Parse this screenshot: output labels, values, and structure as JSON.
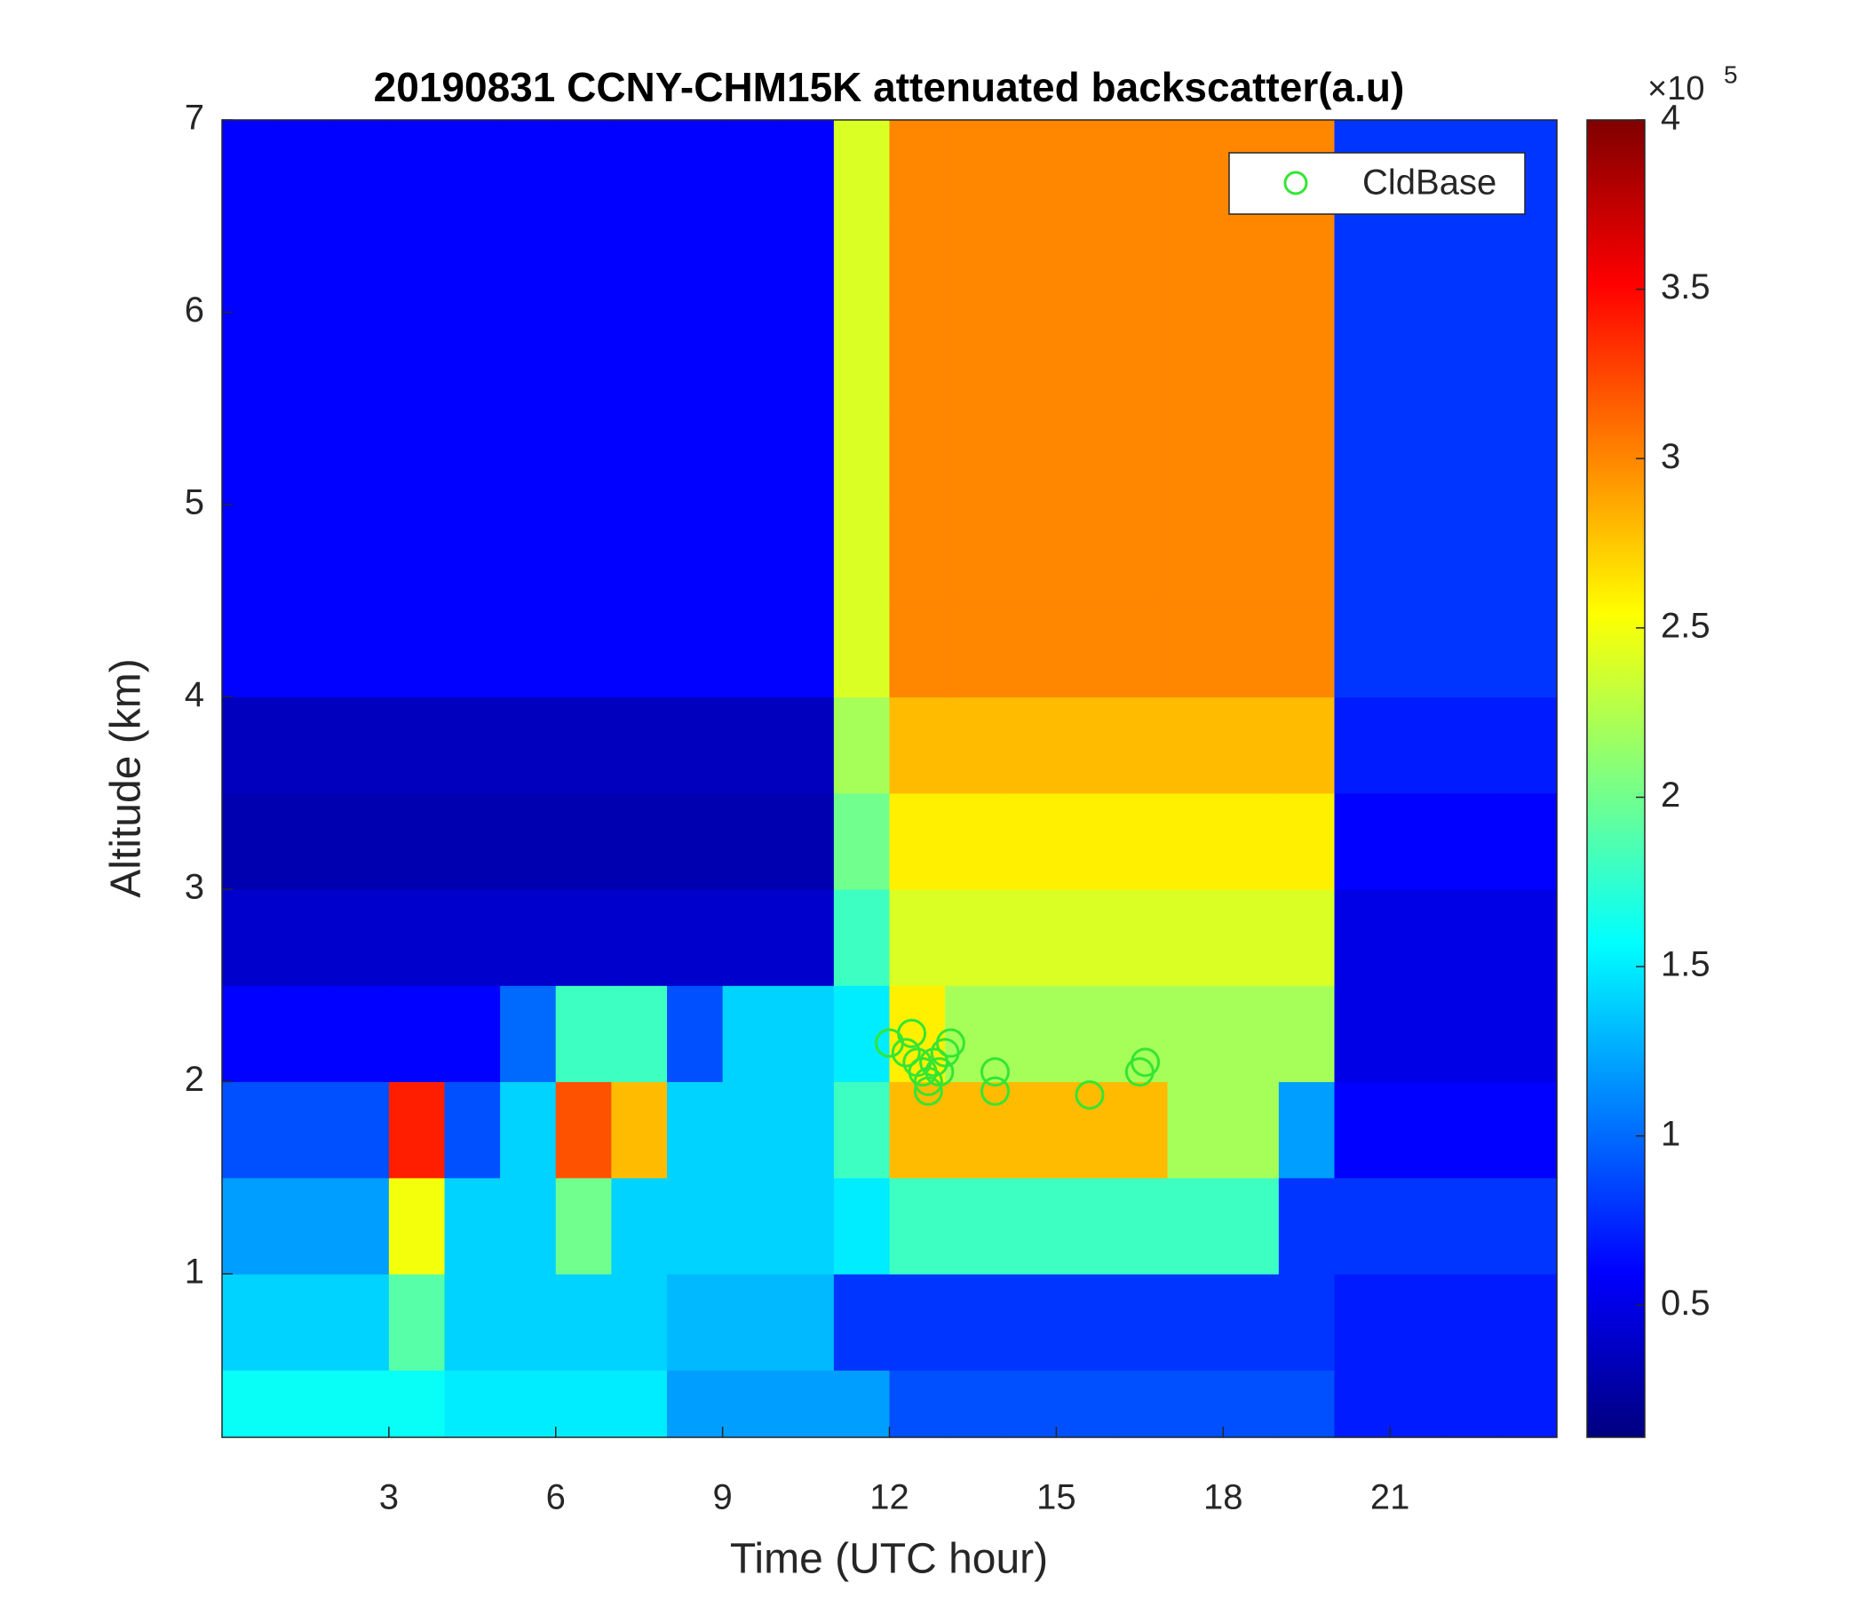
{
  "chart_data": {
    "type": "heatmap",
    "title": "20190831 CCNY-CHM15K attenuated backscatter(a.u)",
    "xlabel": "Time (UTC hour)",
    "ylabel": "Altitude (km)",
    "xlim": [
      0,
      24
    ],
    "xticks": [
      3,
      6,
      9,
      12,
      15,
      18,
      21
    ],
    "ylim": [
      0.15,
      7
    ],
    "yticks": [
      1,
      2,
      3,
      4,
      5,
      6,
      7
    ],
    "clim": [
      0.11,
      4
    ],
    "cticks": [
      0.5,
      1,
      1.5,
      2,
      2.5,
      3,
      3.5,
      4
    ],
    "colorbar_multiplier": "×10",
    "colorbar_exponent": "5",
    "colormap": "jet",
    "x_edges": [
      0,
      1,
      2,
      3,
      4,
      5,
      6,
      7,
      8,
      9,
      10,
      11,
      12,
      13,
      14,
      15,
      16,
      17,
      18,
      19,
      20,
      21,
      22,
      23,
      24
    ],
    "y_edges": [
      0.15,
      0.5,
      1,
      1.5,
      2,
      2.5,
      3,
      3.5,
      4,
      4.5,
      5,
      5.5,
      6,
      6.5,
      7
    ],
    "z": [
      [
        1.6,
        1.6,
        1.6,
        1.6,
        1.5,
        1.5,
        1.5,
        1.5,
        1.2,
        1.2,
        1.2,
        1.2,
        0.9,
        0.9,
        0.9,
        0.9,
        0.9,
        0.9,
        0.9,
        0.9,
        0.7,
        0.7,
        0.7,
        0.7
      ],
      [
        1.4,
        1.4,
        1.4,
        1.9,
        1.4,
        1.4,
        1.4,
        1.4,
        1.3,
        1.3,
        1.3,
        0.8,
        0.8,
        0.8,
        0.8,
        0.8,
        0.8,
        0.8,
        0.8,
        0.8,
        0.7,
        0.7,
        0.7,
        0.7
      ],
      [
        1.2,
        1.2,
        1.2,
        2.5,
        1.4,
        1.4,
        2.0,
        1.4,
        1.4,
        1.4,
        1.4,
        1.5,
        1.8,
        1.8,
        1.8,
        1.8,
        1.8,
        1.8,
        1.8,
        0.8,
        0.8,
        0.8,
        0.8,
        0.8
      ],
      [
        0.9,
        0.9,
        0.9,
        3.4,
        0.9,
        1.4,
        3.2,
        2.8,
        1.4,
        1.4,
        1.4,
        1.8,
        2.8,
        2.8,
        2.8,
        2.8,
        2.8,
        2.2,
        2.2,
        1.2,
        0.6,
        0.6,
        0.6,
        0.6
      ],
      [
        0.6,
        0.6,
        0.6,
        0.6,
        0.6,
        1.0,
        1.8,
        1.8,
        0.9,
        1.4,
        1.4,
        1.5,
        2.6,
        2.2,
        2.2,
        2.2,
        2.2,
        2.2,
        2.2,
        2.2,
        0.5,
        0.5,
        0.5,
        0.5
      ],
      [
        0.4,
        0.4,
        0.4,
        0.4,
        0.4,
        0.4,
        0.4,
        0.4,
        0.4,
        0.4,
        0.4,
        1.8,
        2.4,
        2.4,
        2.4,
        2.4,
        2.4,
        2.4,
        2.4,
        2.4,
        0.5,
        0.5,
        0.5,
        0.5
      ],
      [
        0.3,
        0.3,
        0.3,
        0.3,
        0.3,
        0.3,
        0.3,
        0.3,
        0.3,
        0.3,
        0.3,
        2.0,
        2.6,
        2.6,
        2.6,
        2.6,
        2.6,
        2.6,
        2.6,
        2.6,
        0.6,
        0.6,
        0.6,
        0.6
      ],
      [
        0.35,
        0.35,
        0.35,
        0.35,
        0.35,
        0.35,
        0.35,
        0.35,
        0.35,
        0.35,
        0.35,
        2.2,
        2.8,
        2.8,
        2.8,
        2.8,
        2.8,
        2.8,
        2.8,
        2.8,
        0.7,
        0.7,
        0.7,
        0.7
      ],
      [
        0.6,
        0.6,
        0.6,
        0.6,
        0.6,
        0.6,
        0.6,
        0.6,
        0.6,
        0.6,
        0.6,
        2.4,
        3.0,
        3.0,
        3.0,
        3.0,
        3.0,
        3.0,
        3.0,
        3.0,
        0.8,
        0.8,
        0.8,
        0.8
      ],
      [
        0.6,
        0.6,
        0.6,
        0.6,
        0.6,
        0.6,
        0.6,
        0.6,
        0.6,
        0.6,
        0.6,
        2.4,
        3.0,
        3.0,
        3.0,
        3.0,
        3.0,
        3.0,
        3.0,
        3.0,
        0.8,
        0.8,
        0.8,
        0.8
      ],
      [
        0.6,
        0.6,
        0.6,
        0.6,
        0.6,
        0.6,
        0.6,
        0.6,
        0.6,
        0.6,
        0.6,
        2.4,
        3.0,
        3.0,
        3.0,
        3.0,
        3.0,
        3.0,
        3.0,
        3.0,
        0.8,
        0.8,
        0.8,
        0.8
      ],
      [
        0.6,
        0.6,
        0.6,
        0.6,
        0.6,
        0.6,
        0.6,
        0.6,
        0.6,
        0.6,
        0.6,
        2.4,
        3.0,
        3.0,
        3.0,
        3.0,
        3.0,
        3.0,
        3.0,
        3.0,
        0.8,
        0.8,
        0.8,
        0.8
      ],
      [
        0.6,
        0.6,
        0.6,
        0.6,
        0.6,
        0.6,
        0.6,
        0.6,
        0.6,
        0.6,
        0.6,
        2.4,
        3.0,
        3.0,
        3.0,
        3.0,
        3.0,
        3.0,
        3.0,
        3.0,
        0.8,
        0.8,
        0.8,
        0.8
      ],
      [
        0.6,
        0.6,
        0.6,
        0.6,
        0.6,
        0.6,
        0.6,
        0.6,
        0.6,
        0.6,
        0.6,
        2.4,
        3.0,
        3.0,
        3.0,
        3.0,
        3.0,
        3.0,
        3.0,
        3.0,
        0.8,
        0.8,
        0.8,
        0.8
      ]
    ],
    "series": [
      {
        "name": "CldBase",
        "type": "scatter",
        "color": "#33e633",
        "x": [
          12.0,
          12.3,
          12.5,
          12.6,
          12.7,
          12.8,
          12.9,
          13.0,
          13.1,
          12.4,
          12.7,
          13.9,
          13.9,
          15.6,
          16.5,
          16.6
        ],
        "y": [
          2.2,
          2.15,
          2.1,
          2.05,
          2.0,
          2.1,
          2.05,
          2.15,
          2.2,
          2.25,
          1.95,
          2.05,
          1.95,
          1.93,
          2.05,
          2.1
        ]
      }
    ],
    "legend": "northeast"
  }
}
